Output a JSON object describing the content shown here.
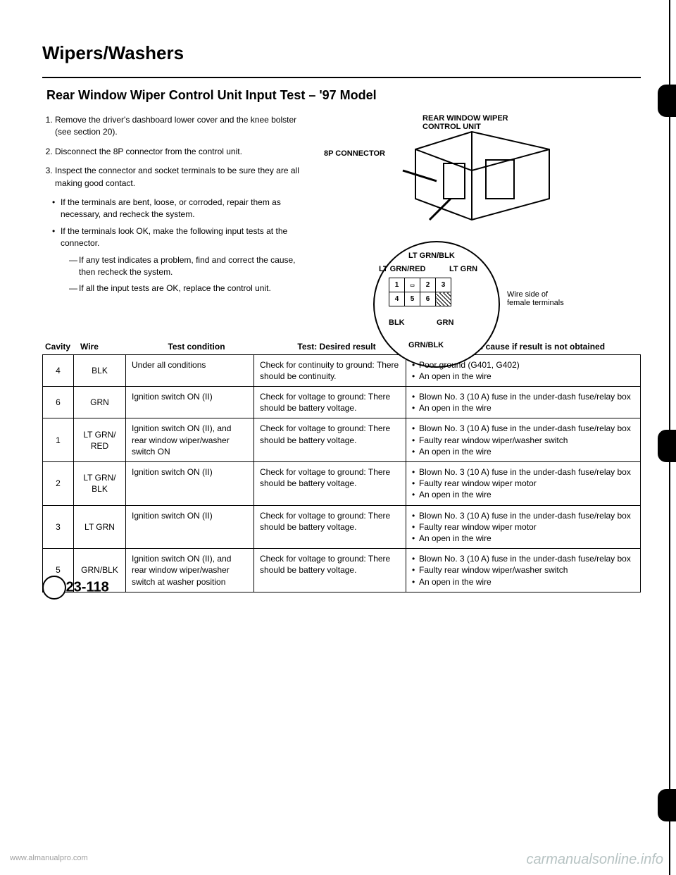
{
  "page": {
    "main_title": "Wipers/Washers",
    "sub_title": "Rear Window Wiper Control Unit Input Test – '97 Model",
    "page_number": "23-118"
  },
  "instructions": {
    "steps": [
      "Remove the driver's dashboard lower cover and the knee bolster (see section 20).",
      "Disconnect the 8P connector from the control unit.",
      "Inspect the connector and socket terminals to be sure they are all making good contact."
    ],
    "bullets": [
      "If the terminals are bent, loose, or corroded, repair them as necessary, and recheck the system.",
      "If the terminals look OK, make the following input tests at the connector."
    ],
    "subbullets": [
      "If any test indicates a problem, find and correct the cause, then recheck the system.",
      "If all the input tests are OK, replace the control unit."
    ]
  },
  "diagram": {
    "labels": {
      "rear_unit": "REAR WINDOW WIPER\nCONTROL UNIT",
      "connector": "8P CONNECTOR",
      "lt_grn_blk": "LT GRN/BLK",
      "lt_grn_red": "LT GRN/RED",
      "lt_grn": "LT GRN",
      "wire_side": "Wire side of\nfemale terminals",
      "blk": "BLK",
      "grn": "GRN",
      "grn_blk": "GRN/BLK"
    },
    "pins": [
      "1",
      "",
      "2",
      "3",
      "4",
      "5",
      "6",
      ""
    ]
  },
  "table": {
    "headers": [
      "Cavity",
      "Wire",
      "Test condition",
      "Test: Desired result",
      "Possible cause if result is not obtained"
    ],
    "rows": [
      {
        "cavity": "4",
        "wire": "BLK",
        "condition": "Under all conditions",
        "result": "Check for continuity to ground: There should be continuity.",
        "causes": [
          "Poor ground (G401, G402)",
          "An open in the wire"
        ]
      },
      {
        "cavity": "6",
        "wire": "GRN",
        "condition": "Ignition switch ON (II)",
        "result": "Check for voltage to ground: There should be battery voltage.",
        "causes": [
          "Blown No. 3 (10 A) fuse in the under-dash fuse/relay box",
          "An open in the wire"
        ]
      },
      {
        "cavity": "1",
        "wire": "LT GRN/ RED",
        "condition": "Ignition switch ON (II), and rear window wiper/washer switch ON",
        "result": "Check for voltage to ground: There should be battery voltage.",
        "causes": [
          "Blown No. 3 (10 A) fuse in the under-dash fuse/relay box",
          "Faulty rear window wiper/washer switch",
          "An open in the wire"
        ]
      },
      {
        "cavity": "2",
        "wire": "LT GRN/ BLK",
        "condition": "Ignition switch ON (II)",
        "result": "Check for voltage to ground: There should be battery voltage.",
        "causes": [
          "Blown No. 3 (10 A) fuse in the under-dash fuse/relay box",
          "Faulty rear window wiper motor",
          "An open in the wire"
        ]
      },
      {
        "cavity": "3",
        "wire": "LT GRN",
        "condition": "Ignition switch ON (II)",
        "result": "Check for voltage to ground: There should be battery voltage.",
        "causes": [
          "Blown No. 3 (10 A) fuse in the under-dash fuse/relay box",
          "Faulty rear window wiper motor",
          "An open in the wire"
        ]
      },
      {
        "cavity": "5",
        "wire": "GRN/BLK",
        "condition": "Ignition switch ON (II), and rear window wiper/washer switch at washer position",
        "result": "Check for voltage to ground: There should be battery voltage.",
        "causes": [
          "Blown No. 3 (10 A) fuse in the under-dash fuse/relay box",
          "Faulty rear window wiper/washer switch",
          "An open in the wire"
        ]
      }
    ]
  },
  "watermarks": {
    "left": "www.almanualpro.com",
    "right": "carmanualsonline.info"
  },
  "colors": {
    "text": "#000000",
    "background": "#ffffff",
    "watermark": "#9aa"
  }
}
